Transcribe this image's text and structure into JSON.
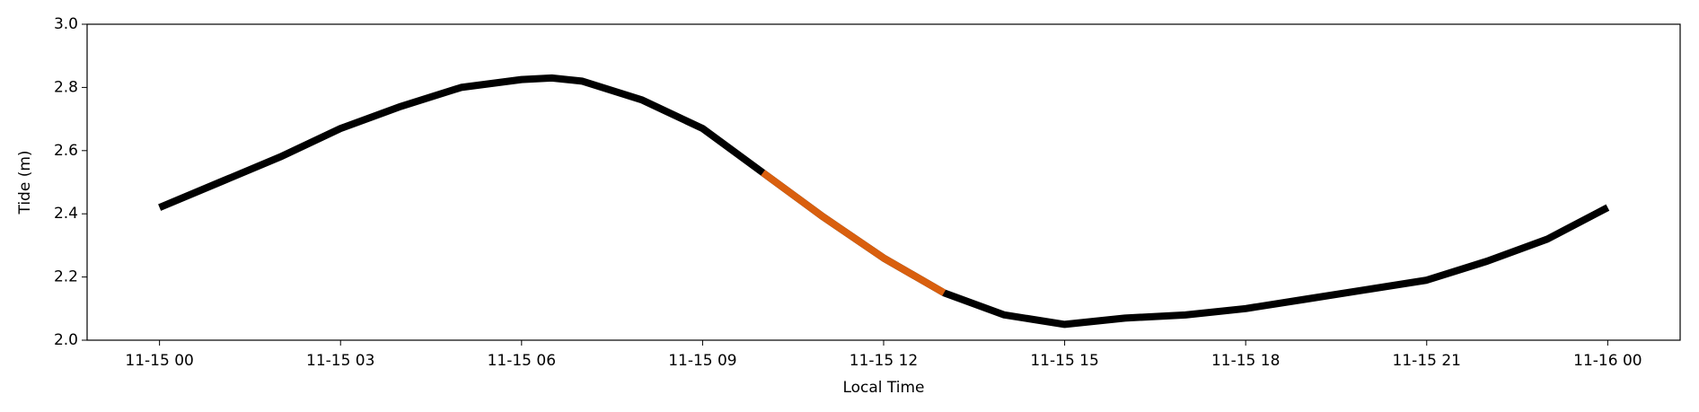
{
  "chart_data": {
    "type": "line",
    "xlabel": "Local Time",
    "ylabel": "Tide (m)",
    "x": [
      0,
      1,
      2,
      3,
      4,
      5,
      6,
      6.5,
      7,
      8,
      9,
      10,
      11,
      12,
      13,
      14,
      15,
      16,
      17,
      18,
      19,
      20,
      21,
      22,
      23,
      24
    ],
    "series": [
      {
        "color": "#000000",
        "values": [
          2.42,
          2.5,
          2.58,
          2.67,
          2.74,
          2.8,
          2.825,
          2.83,
          2.82,
          2.76,
          2.67,
          2.53,
          2.39,
          2.26,
          2.15,
          2.08,
          2.05,
          2.07,
          2.08,
          2.1,
          2.13,
          2.16,
          2.19,
          2.25,
          2.32,
          2.42
        ]
      },
      {
        "color": "#d95f0e",
        "values": [
          null,
          null,
          null,
          null,
          null,
          null,
          null,
          null,
          null,
          null,
          null,
          2.53,
          2.39,
          2.26,
          2.15,
          null,
          null,
          null,
          null,
          null,
          null,
          null,
          null,
          null,
          null,
          null
        ]
      }
    ],
    "xlim": [
      -1.2,
      25.2
    ],
    "xticks": [
      {
        "value": 0,
        "label": "11-15 00"
      },
      {
        "value": 3,
        "label": "11-15 03"
      },
      {
        "value": 6,
        "label": "11-15 06"
      },
      {
        "value": 9,
        "label": "11-15 09"
      },
      {
        "value": 12,
        "label": "11-15 12"
      },
      {
        "value": 15,
        "label": "11-15 15"
      },
      {
        "value": 18,
        "label": "11-15 18"
      },
      {
        "value": 21,
        "label": "11-15 21"
      },
      {
        "value": 24,
        "label": "11-16 00"
      }
    ],
    "ylim": [
      2.0,
      3.0
    ],
    "yticks": [
      {
        "value": 2.0,
        "label": "2.0"
      },
      2.2,
      2.4,
      2.6,
      2.8,
      {
        "value": 3.0,
        "label": "3.0"
      }
    ],
    "grid": false
  }
}
